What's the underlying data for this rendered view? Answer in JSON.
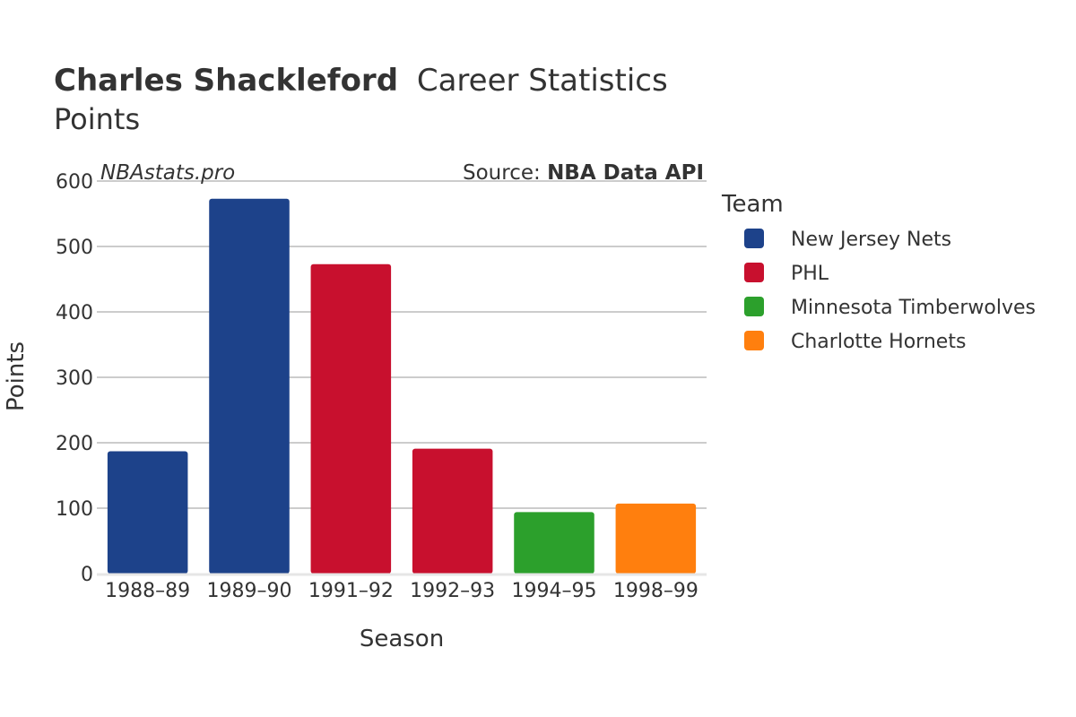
{
  "chart_data": {
    "type": "bar",
    "title_bold": "Charles Shackleford",
    "title_rest": "Career Statistics",
    "subtitle": "Points",
    "watermark": "NBAstats.pro",
    "source_prefix": "Source: ",
    "source_name": "NBA Data API",
    "xlabel": "Season",
    "ylabel": "Points",
    "ylim": [
      0,
      600
    ],
    "yticks": [
      0,
      100,
      200,
      300,
      400,
      500,
      600
    ],
    "grid": true,
    "legend_title": "Team",
    "legend_position": "right",
    "legend": [
      {
        "name": "New Jersey Nets",
        "color": "#1d428a"
      },
      {
        "name": "PHL",
        "color": "#c8102e"
      },
      {
        "name": "Minnesota Timberwolves",
        "color": "#2ca02c"
      },
      {
        "name": "Charlotte Hornets",
        "color": "#ff7f0e"
      }
    ],
    "categories": [
      "1988–89",
      "1989–90",
      "1991–92",
      "1992–93",
      "1994–95",
      "1998–99"
    ],
    "values": [
      187,
      573,
      473,
      191,
      94,
      107
    ],
    "teams": [
      "New Jersey Nets",
      "New Jersey Nets",
      "PHL",
      "PHL",
      "Minnesota Timberwolves",
      "Charlotte Hornets"
    ]
  }
}
